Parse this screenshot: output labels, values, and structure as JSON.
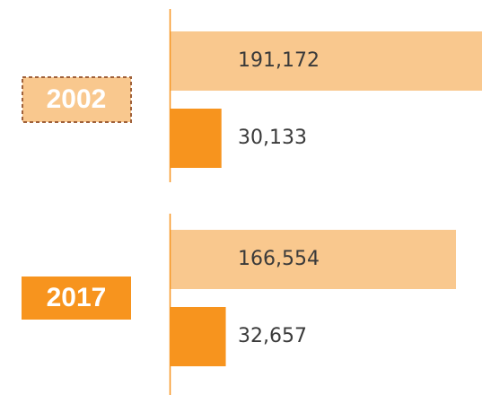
{
  "chart_data": {
    "type": "bar",
    "orientation": "horizontal",
    "categories": [
      "2002",
      "2017"
    ],
    "series": [
      {
        "color": "#f9c88e",
        "values": [
          191172,
          166554
        ],
        "value_labels": [
          "191,172",
          "166,554"
        ]
      },
      {
        "color": "#f7941e",
        "values": [
          30133,
          32657
        ],
        "value_labels": [
          "30,133",
          "32,657"
        ]
      }
    ],
    "xlim": [
      0,
      181700
    ]
  }
}
